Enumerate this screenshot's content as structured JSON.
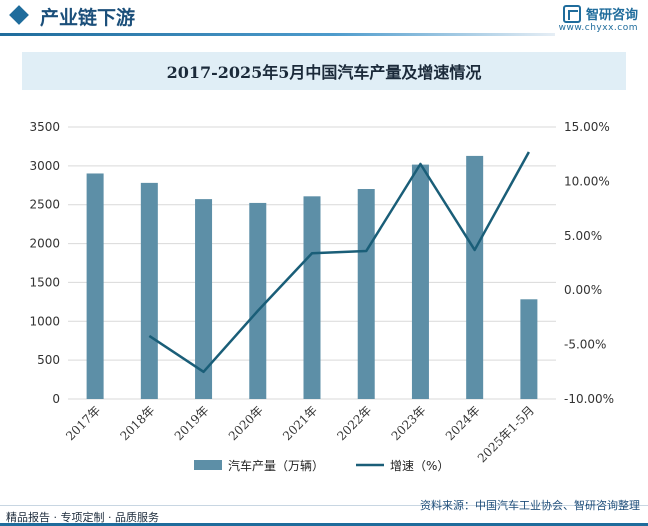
{
  "header": {
    "title": "产业链下游",
    "brand_name": "智研咨询",
    "brand_url": "www.chyxx.com"
  },
  "chart_data": {
    "type": "bar",
    "title": "2017-2025年5月中国汽车产量及增速情况",
    "categories": [
      "2017年",
      "2018年",
      "2019年",
      "2020年",
      "2021年",
      "2022年",
      "2023年",
      "2024年",
      "2025年1-5月"
    ],
    "series": [
      {
        "name": "汽车产量（万辆）",
        "type": "bar",
        "axis": "left",
        "color": "#5d8fa7",
        "values": [
          2902,
          2781,
          2572,
          2523,
          2608,
          2702,
          3016,
          3128,
          1283
        ]
      },
      {
        "name": "增速（%）",
        "type": "line",
        "axis": "right",
        "color": "#1a5e78",
        "values": [
          null,
          -4.2,
          -7.5,
          -1.9,
          3.4,
          3.6,
          11.6,
          3.7,
          12.7
        ]
      }
    ],
    "left_axis": {
      "min": 0,
      "max": 3500,
      "ticks": [
        "0",
        "500",
        "1000",
        "1500",
        "2000",
        "2500",
        "3000",
        "3500"
      ]
    },
    "right_axis": {
      "min": -10,
      "max": 15,
      "ticks": [
        "-10.00%",
        "-5.00%",
        "0.00%",
        "5.00%",
        "10.00%",
        "15.00%"
      ]
    },
    "grid": true,
    "legend_position": "bottom"
  },
  "footer": {
    "left": "精品报告 · 专项定制 · 品质服务",
    "source": "资料来源：中国汽车工业协会、智研咨询整理"
  }
}
